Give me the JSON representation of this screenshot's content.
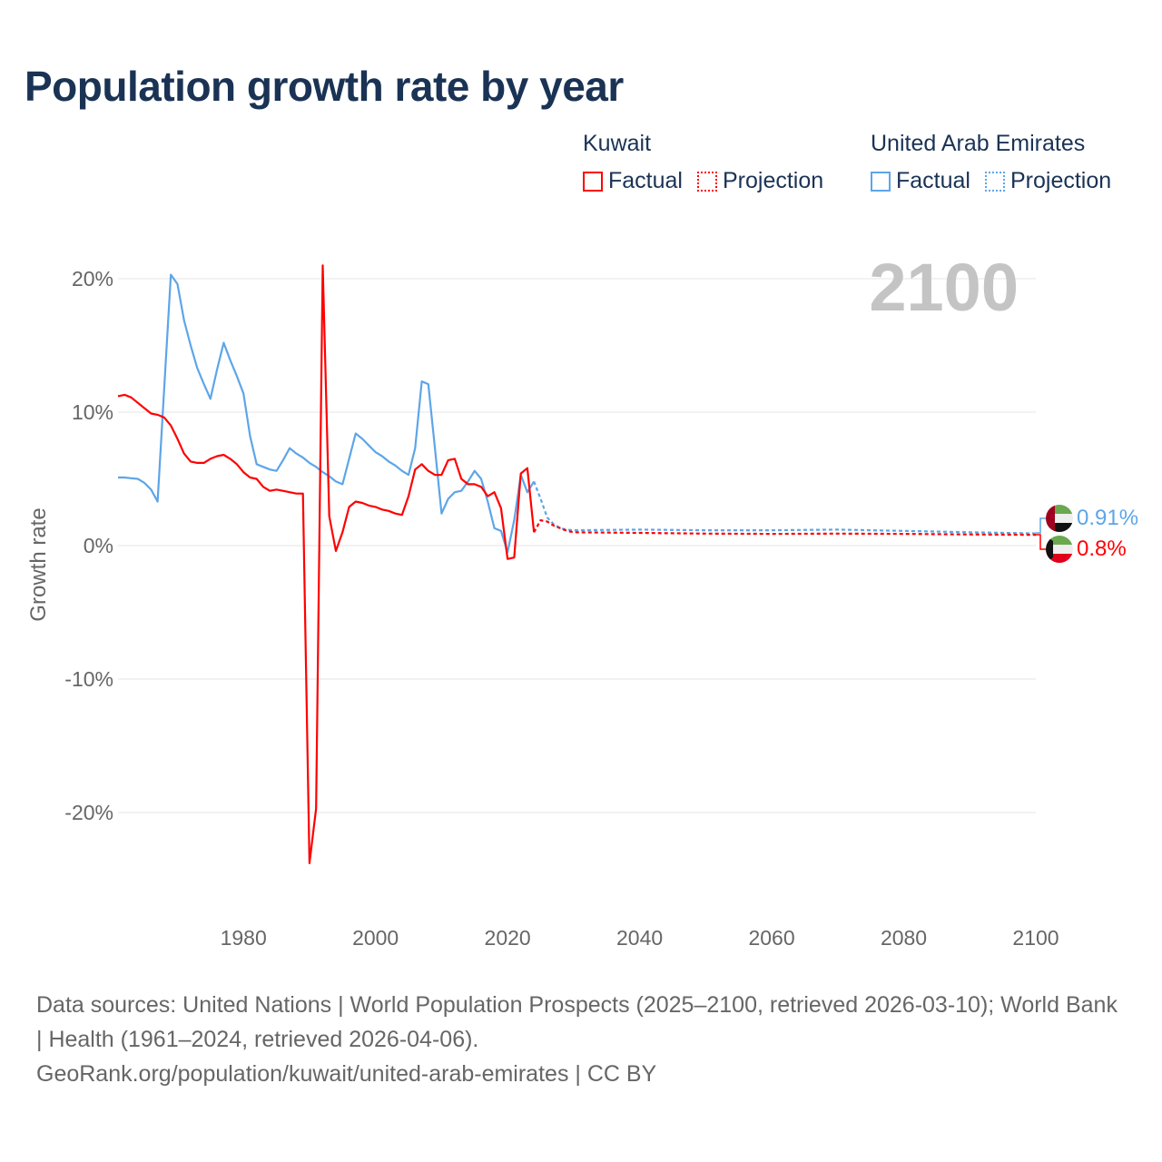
{
  "title": "Population growth rate by year",
  "legend": {
    "groups": [
      {
        "name": "Kuwait",
        "factual": "Factual",
        "projection": "Projection",
        "color": "#ff0000"
      },
      {
        "name": "United Arab Emirates",
        "factual": "Factual",
        "projection": "Projection",
        "color": "#5da5e8"
      }
    ]
  },
  "year_label": "2100",
  "footer": {
    "sources": "Data sources: United Nations | World Population Prospects (2025–2100, retrieved 2026-03-10); World Bank | Health (1961–2024, retrieved 2026-04-06).",
    "link": "GeoRank.org/population/kuwait/united-arab-emirates | CC BY"
  },
  "chart_data": {
    "type": "line",
    "title": "Population growth rate by year",
    "xlabel": "",
    "ylabel": "Growth rate",
    "xlim": [
      1961,
      2100
    ],
    "ylim": [
      -25,
      22
    ],
    "x_ticks": [
      1980,
      2000,
      2020,
      2040,
      2060,
      2080,
      2100
    ],
    "x_tick_labels": [
      "1980",
      "2000",
      "2020",
      "2040",
      "2060",
      "2080",
      "2100"
    ],
    "y_ticks": [
      20,
      10,
      0,
      -10,
      -20
    ],
    "y_tick_labels": [
      "20%",
      "10%",
      "0%",
      "-10%",
      "-20%"
    ],
    "grid": true,
    "series": [
      {
        "name": "Kuwait",
        "color": "#ff0000",
        "end_label": "0.8%",
        "factual_start": 1961,
        "factual": [
          11.2,
          11.3,
          11.1,
          10.7,
          10.3,
          9.9,
          9.8,
          9.6,
          9.0,
          8.0,
          6.9,
          6.3,
          6.2,
          6.2,
          6.5,
          6.7,
          6.8,
          6.5,
          6.1,
          5.5,
          5.1,
          5.0,
          4.4,
          4.1,
          4.2,
          4.1,
          4.0,
          3.9,
          3.9,
          -23.8,
          -19.7,
          21.0,
          2.2,
          -0.4,
          1.0,
          2.9,
          3.3,
          3.2,
          3.0,
          2.9,
          2.7,
          2.6,
          2.4,
          2.3,
          3.7,
          5.7,
          6.1,
          5.6,
          5.3,
          5.3,
          6.4,
          6.5,
          5.0,
          4.6,
          4.6,
          4.4,
          3.7,
          4.0,
          2.8,
          -1.0,
          -0.9,
          5.4,
          5.8,
          1.0
        ],
        "projection": [
          [
            2024,
            1.0
          ],
          [
            2025,
            1.9
          ],
          [
            2026,
            1.8
          ],
          [
            2027,
            1.5
          ],
          [
            2028,
            1.3
          ],
          [
            2029,
            1.1
          ],
          [
            2030,
            1.0
          ],
          [
            2040,
            0.95
          ],
          [
            2050,
            0.9
          ],
          [
            2060,
            0.88
          ],
          [
            2070,
            0.9
          ],
          [
            2080,
            0.88
          ],
          [
            2090,
            0.84
          ],
          [
            2100,
            0.8
          ]
        ]
      },
      {
        "name": "United Arab Emirates",
        "color": "#5da5e8",
        "end_label": "0.91%",
        "factual_start": 1961,
        "factual": [
          5.1,
          5.1,
          5.05,
          5.0,
          4.7,
          4.2,
          3.3,
          11.8,
          20.3,
          19.6,
          16.9,
          15.0,
          13.3,
          12.1,
          11.0,
          13.2,
          15.2,
          13.9,
          12.7,
          11.4,
          8.2,
          6.1,
          5.9,
          5.7,
          5.6,
          6.4,
          7.3,
          6.9,
          6.6,
          6.2,
          5.9,
          5.5,
          5.2,
          4.8,
          4.6,
          6.5,
          8.4,
          8.0,
          7.5,
          7.0,
          6.7,
          6.3,
          6.0,
          5.6,
          5.3,
          7.3,
          12.3,
          12.1,
          7.3,
          2.4,
          3.5,
          4.0,
          4.1,
          4.8,
          5.6,
          5.0,
          3.3,
          1.3,
          1.1,
          -0.5,
          1.9,
          5.3,
          4.0,
          4.8
        ],
        "projection": [
          [
            2024,
            4.8
          ],
          [
            2025,
            3.5
          ],
          [
            2026,
            2.1
          ],
          [
            2027,
            1.6
          ],
          [
            2028,
            1.3
          ],
          [
            2029,
            1.2
          ],
          [
            2030,
            1.15
          ],
          [
            2040,
            1.2
          ],
          [
            2050,
            1.15
          ],
          [
            2060,
            1.15
          ],
          [
            2070,
            1.2
          ],
          [
            2080,
            1.1
          ],
          [
            2090,
            1.0
          ],
          [
            2100,
            0.91
          ]
        ]
      }
    ]
  }
}
